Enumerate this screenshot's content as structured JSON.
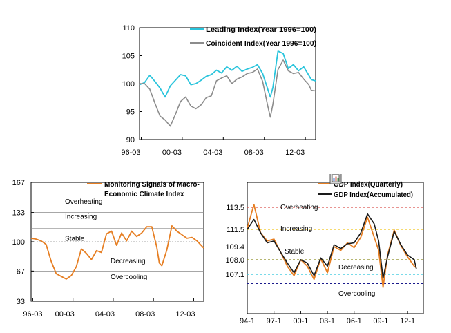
{
  "chart_data": [
    {
      "type": "line",
      "x_ticks": [
        "96-03",
        "00-03",
        "04-03",
        "08-03",
        "12-03"
      ],
      "y_ticks": [
        "110",
        "105",
        "100",
        "95",
        "90"
      ],
      "ylim": [
        90,
        110
      ],
      "x_range": [
        "1996-01",
        "2013-03"
      ],
      "legend_position": "top-right",
      "grid": false,
      "series": [
        {
          "name": "Leading Index(Year 1996=100)",
          "color": "#29c4dc",
          "points": [
            [
              "1996-01",
              99.8
            ],
            [
              "1996-07",
              100.2
            ],
            [
              "1997-01",
              101.5
            ],
            [
              "1997-07",
              100.4
            ],
            [
              "1998-01",
              99.2
            ],
            [
              "1998-07",
              97.6
            ],
            [
              "1999-01",
              99.6
            ],
            [
              "1999-07",
              100.6
            ],
            [
              "2000-01",
              101.6
            ],
            [
              "2000-07",
              101.4
            ],
            [
              "2001-01",
              99.8
            ],
            [
              "2001-07",
              100.0
            ],
            [
              "2002-01",
              100.6
            ],
            [
              "2002-07",
              101.3
            ],
            [
              "2003-01",
              101.6
            ],
            [
              "2003-07",
              102.4
            ],
            [
              "2004-01",
              101.9
            ],
            [
              "2004-07",
              103.0
            ],
            [
              "2005-01",
              102.4
            ],
            [
              "2005-07",
              103.1
            ],
            [
              "2006-01",
              102.2
            ],
            [
              "2006-07",
              102.6
            ],
            [
              "2007-01",
              102.9
            ],
            [
              "2007-07",
              103.4
            ],
            [
              "2008-01",
              101.8
            ],
            [
              "2008-07",
              99.0
            ],
            [
              "2008-10",
              97.6
            ],
            [
              "2009-01",
              99.3
            ],
            [
              "2009-07",
              105.8
            ],
            [
              "2010-01",
              105.4
            ],
            [
              "2010-07",
              102.7
            ],
            [
              "2011-01",
              103.4
            ],
            [
              "2011-07",
              102.3
            ],
            [
              "2012-01",
              103.0
            ],
            [
              "2012-07",
              101.5
            ],
            [
              "2012-10",
              100.7
            ],
            [
              "2013-03",
              100.5
            ]
          ]
        },
        {
          "name": "Coincident Index(Year 1996=100)",
          "color": "#8c8c8c",
          "points": [
            [
              "1996-01",
              100.0
            ],
            [
              "1996-07",
              100.0
            ],
            [
              "1997-01",
              99.0
            ],
            [
              "1997-07",
              96.5
            ],
            [
              "1998-01",
              94.2
            ],
            [
              "1998-07",
              93.5
            ],
            [
              "1999-01",
              92.4
            ],
            [
              "1999-07",
              94.5
            ],
            [
              "2000-01",
              96.8
            ],
            [
              "2000-07",
              97.6
            ],
            [
              "2001-01",
              96.0
            ],
            [
              "2001-07",
              95.5
            ],
            [
              "2002-01",
              96.2
            ],
            [
              "2002-07",
              97.5
            ],
            [
              "2003-01",
              97.8
            ],
            [
              "2003-07",
              100.5
            ],
            [
              "2004-01",
              101.0
            ],
            [
              "2004-07",
              101.4
            ],
            [
              "2005-01",
              100.0
            ],
            [
              "2005-07",
              100.8
            ],
            [
              "2006-01",
              101.2
            ],
            [
              "2006-07",
              101.8
            ],
            [
              "2007-01",
              102.0
            ],
            [
              "2007-07",
              102.6
            ],
            [
              "2008-01",
              100.4
            ],
            [
              "2008-07",
              96.0
            ],
            [
              "2008-10",
              94.0
            ],
            [
              "2009-01",
              96.3
            ],
            [
              "2009-07",
              102.5
            ],
            [
              "2010-01",
              104.2
            ],
            [
              "2010-07",
              102.3
            ],
            [
              "2011-01",
              101.8
            ],
            [
              "2011-07",
              102.0
            ],
            [
              "2012-01",
              100.8
            ],
            [
              "2012-07",
              99.8
            ],
            [
              "2012-10",
              98.8
            ],
            [
              "2013-03",
              98.7
            ]
          ]
        }
      ]
    },
    {
      "type": "line",
      "x_ticks": [
        "96-03",
        "00-03",
        "04-03",
        "08-03",
        "12-03"
      ],
      "y_ticks": [
        "167",
        "133",
        "100",
        "67",
        "33"
      ],
      "ylim": [
        33,
        167
      ],
      "x_range": [
        "1996-01",
        "2013-03"
      ],
      "legend_position": "top-right",
      "threshold_lines": [
        133,
        115,
        100,
        84,
        67
      ],
      "zones": [
        "Overheating",
        "Increasing",
        "Stable",
        "Decreasing",
        "Overcooling"
      ],
      "series": [
        {
          "name": "Monitoring Signals of Macro-Economic Climate Index",
          "color": "#e67e22",
          "points": [
            [
              "1996-01",
              104
            ],
            [
              "1996-07",
              103
            ],
            [
              "1997-01",
              101
            ],
            [
              "1997-07",
              97
            ],
            [
              "1998-01",
              78
            ],
            [
              "1998-07",
              64
            ],
            [
              "1999-01",
              61
            ],
            [
              "1999-07",
              58
            ],
            [
              "2000-01",
              62
            ],
            [
              "2000-07",
              72
            ],
            [
              "2001-01",
              92
            ],
            [
              "2001-07",
              87
            ],
            [
              "2002-01",
              80
            ],
            [
              "2002-07",
              90
            ],
            [
              "2003-01",
              88
            ],
            [
              "2003-07",
              109
            ],
            [
              "2004-01",
              112
            ],
            [
              "2004-07",
              96
            ],
            [
              "2005-01",
              110
            ],
            [
              "2005-07",
              101
            ],
            [
              "2006-01",
              112
            ],
            [
              "2006-07",
              106
            ],
            [
              "2007-01",
              110
            ],
            [
              "2007-07",
              117
            ],
            [
              "2008-01",
              117
            ],
            [
              "2008-07",
              94
            ],
            [
              "2008-10",
              76
            ],
            [
              "2009-01",
              73
            ],
            [
              "2009-07",
              91
            ],
            [
              "2010-01",
              118
            ],
            [
              "2010-07",
              112
            ],
            [
              "2011-01",
              108
            ],
            [
              "2011-07",
              104
            ],
            [
              "2012-01",
              105
            ],
            [
              "2012-07",
              101
            ],
            [
              "2012-10",
              98
            ],
            [
              "2013-03",
              93
            ]
          ]
        }
      ]
    },
    {
      "type": "line",
      "x_ticks": [
        "94-1",
        "97-1",
        "00-1",
        "03-1",
        "06-1",
        "09-1",
        "12-1"
      ],
      "y_ticks": [
        "113.5",
        "111.5",
        "109.4",
        "108.0",
        "107.1"
      ],
      "x_range": [
        "1994-01",
        "2013-01"
      ],
      "legend_position": "top-right",
      "threshold_lines": [
        {
          "value": 113.5,
          "color": "#d9534f"
        },
        {
          "value": 111.5,
          "color": "#f0c419"
        },
        {
          "value": 108.0,
          "color": "#8b8b1e"
        },
        {
          "value": 107.1,
          "color": "#29c4dc"
        },
        {
          "value": 106.4,
          "color": "#1a1a8c"
        }
      ],
      "zones": [
        "Overheating",
        "Increasing",
        "Stable",
        "Decreasing",
        "Overcooling"
      ],
      "icon": "chart-icon",
      "series": [
        {
          "name": "GDP Index(Quarterly)",
          "color": "#e67e22",
          "points": [
            [
              "1994-01",
              111.6
            ],
            [
              "1994-10",
              113.8
            ],
            [
              "1995-07",
              111.0
            ],
            [
              "1996-04",
              110.0
            ],
            [
              "1997-01",
              110.2
            ],
            [
              "1997-10",
              108.8
            ],
            [
              "1998-07",
              107.6
            ],
            [
              "1999-04",
              107.0
            ],
            [
              "2000-01",
              108.0
            ],
            [
              "2000-10",
              107.6
            ],
            [
              "2001-07",
              106.7
            ],
            [
              "2002-04",
              108.1
            ],
            [
              "2003-01",
              107.2
            ],
            [
              "2003-10",
              109.4
            ],
            [
              "2004-07",
              109.0
            ],
            [
              "2005-04",
              109.8
            ],
            [
              "2006-01",
              109.3
            ],
            [
              "2006-10",
              110.4
            ],
            [
              "2007-07",
              112.6
            ],
            [
              "2008-04",
              110.4
            ],
            [
              "2008-10",
              109.0
            ],
            [
              "2009-04",
              106.2
            ],
            [
              "2009-10",
              108.5
            ],
            [
              "2010-07",
              111.4
            ],
            [
              "2011-04",
              109.5
            ],
            [
              "2012-01",
              108.3
            ],
            [
              "2012-10",
              107.6
            ],
            [
              "2013-01",
              107.5
            ]
          ]
        },
        {
          "name": "GDP Index(Accumulated)",
          "color": "#1a1a1a",
          "points": [
            [
              "1994-01",
              111.5
            ],
            [
              "1994-10",
              112.4
            ],
            [
              "1995-07",
              111.0
            ],
            [
              "1996-04",
              109.8
            ],
            [
              "1997-01",
              110.0
            ],
            [
              "1997-10",
              108.8
            ],
            [
              "1998-07",
              107.8
            ],
            [
              "1999-04",
              107.2
            ],
            [
              "2000-01",
              108.0
            ],
            [
              "2000-10",
              107.8
            ],
            [
              "2001-07",
              107.0
            ],
            [
              "2002-04",
              108.2
            ],
            [
              "2003-01",
              107.6
            ],
            [
              "2003-10",
              109.6
            ],
            [
              "2004-07",
              109.2
            ],
            [
              "2005-04",
              109.7
            ],
            [
              "2006-01",
              109.8
            ],
            [
              "2006-10",
              111.0
            ],
            [
              "2007-07",
              112.9
            ],
            [
              "2008-04",
              112.0
            ],
            [
              "2008-10",
              110.0
            ],
            [
              "2009-04",
              106.8
            ],
            [
              "2009-10",
              108.3
            ],
            [
              "2010-07",
              111.2
            ],
            [
              "2011-04",
              109.6
            ],
            [
              "2012-01",
              108.5
            ],
            [
              "2012-10",
              108.0
            ],
            [
              "2013-01",
              107.4
            ]
          ]
        }
      ]
    }
  ]
}
